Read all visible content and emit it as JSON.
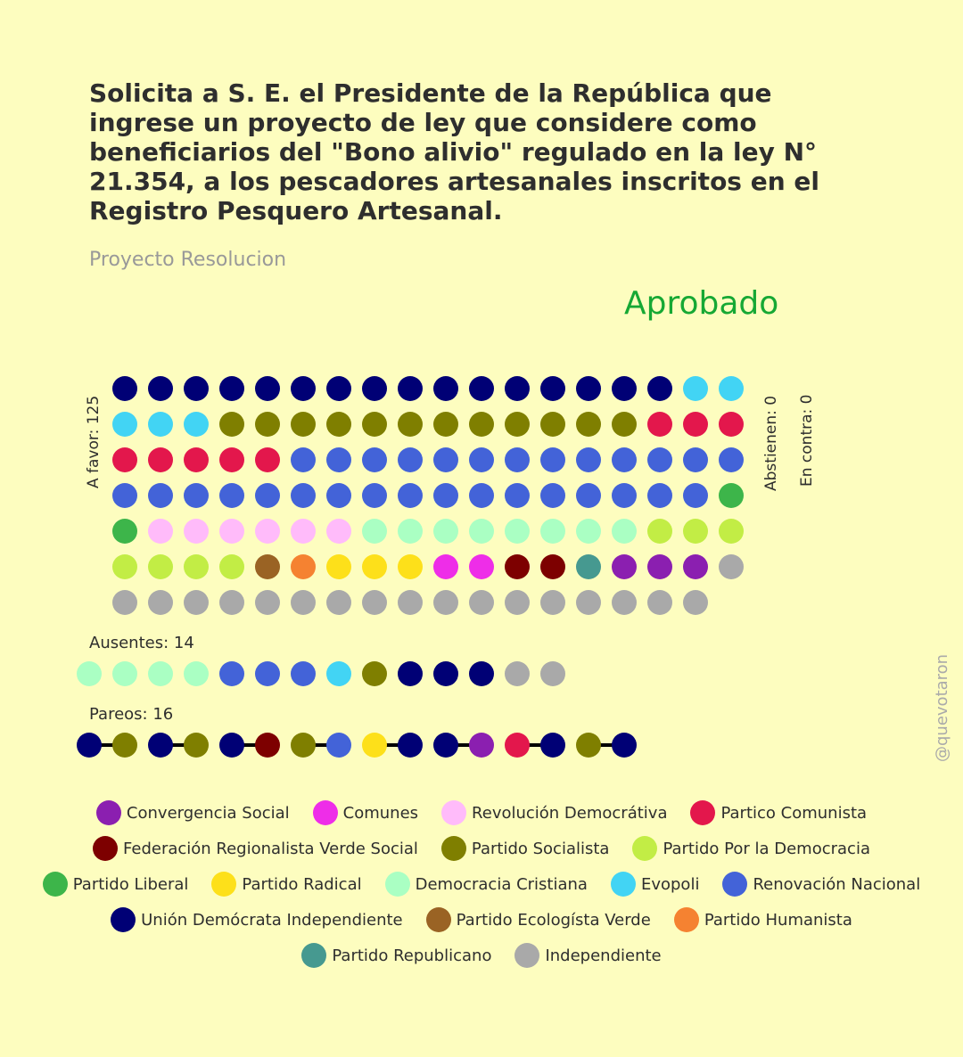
{
  "title": "Solicita a S. E. el Presidente de la República que ingrese un proyecto de ley que considere como beneficiarios del \"Bono alivio\" regulado en la ley N° 21.354, a los pescadores artesanales inscritos en el Registro Pesquero Artesanal.",
  "subtitle": "Proyecto Resolucion",
  "result": "Aprobado",
  "labels": {
    "favor": "A favor: 125",
    "abstienen": "Abstienen: 0",
    "contra": "En contra: 0",
    "ausentes": "Ausentes: 14",
    "pareos": "Pareos: 16"
  },
  "handle": "@quevotaron",
  "colors": {
    "background": "#fdfdbf",
    "result": "#16a834",
    "title": "#2e2e2e",
    "subtitle": "#999999"
  },
  "parties": [
    {
      "key": "CS",
      "name": "Convergencia Social",
      "color": "#8b1fb0"
    },
    {
      "key": "COM",
      "name": "Comunes",
      "color": "#ee2de8"
    },
    {
      "key": "RD",
      "name": "Revolución Democrátiva",
      "color": "#ffbbfa"
    },
    {
      "key": "PC",
      "name": "Partico Comunista",
      "color": "#e3174c"
    },
    {
      "key": "FRVS",
      "name": "Federación Regionalista Verde Social",
      "color": "#7d0000"
    },
    {
      "key": "PS",
      "name": "Partido Socialista",
      "color": "#7f7f00"
    },
    {
      "key": "PPD",
      "name": "Partido Por la Democracia",
      "color": "#c2ed45"
    },
    {
      "key": "PL",
      "name": "Partido Liberal",
      "color": "#3db54a"
    },
    {
      "key": "PR",
      "name": "Partido Radical",
      "color": "#fde01a"
    },
    {
      "key": "DC",
      "name": "Democracia Cristiana",
      "color": "#aaffc3"
    },
    {
      "key": "EVO",
      "name": "Evopoli",
      "color": "#42d4f4"
    },
    {
      "key": "RN",
      "name": "Renovación Nacional",
      "color": "#4363d8"
    },
    {
      "key": "UDI",
      "name": "Unión Demócrata Independiente",
      "color": "#000075"
    },
    {
      "key": "PEV",
      "name": "Partido Ecologísta Verde",
      "color": "#9a6324"
    },
    {
      "key": "PH",
      "name": "Partido Humanista",
      "color": "#f58231"
    },
    {
      "key": "REP",
      "name": "Partido Republicano",
      "color": "#469990"
    },
    {
      "key": "IND",
      "name": "Independiente",
      "color": "#a9a9a9"
    }
  ],
  "chart_data": {
    "type": "waffle",
    "favor": {
      "total": 125,
      "counts": [
        {
          "party": "UDI",
          "count": 16
        },
        {
          "party": "EVO",
          "count": 5
        },
        {
          "party": "PS",
          "count": 12
        },
        {
          "party": "PC",
          "count": 8
        },
        {
          "party": "RN",
          "count": 30
        },
        {
          "party": "PL",
          "count": 2
        },
        {
          "party": "RD",
          "count": 6
        },
        {
          "party": "DC",
          "count": 8
        },
        {
          "party": "PPD",
          "count": 7
        },
        {
          "party": "PEV",
          "count": 1
        },
        {
          "party": "PH",
          "count": 1
        },
        {
          "party": "PR",
          "count": 3
        },
        {
          "party": "COM",
          "count": 2
        },
        {
          "party": "FRVS",
          "count": 2
        },
        {
          "party": "REP",
          "count": 1
        },
        {
          "party": "CS",
          "count": 3
        },
        {
          "party": "IND",
          "count": 18
        }
      ]
    },
    "abstienen": {
      "total": 0,
      "counts": []
    },
    "contra": {
      "total": 0,
      "counts": []
    },
    "ausentes": {
      "total": 14,
      "sequence": [
        "DC",
        "DC",
        "DC",
        "DC",
        "RN",
        "RN",
        "RN",
        "EVO",
        "PS",
        "UDI",
        "UDI",
        "UDI",
        "IND",
        "IND"
      ]
    },
    "pareos": {
      "total": 16,
      "pairs": [
        [
          "UDI",
          "PS"
        ],
        [
          "UDI",
          "PS"
        ],
        [
          "UDI",
          "FRVS"
        ],
        [
          "PS",
          "RN"
        ],
        [
          "PR",
          "UDI"
        ],
        [
          "UDI",
          "CS"
        ],
        [
          "PC",
          "UDI"
        ],
        [
          "PS",
          "UDI"
        ]
      ]
    }
  }
}
